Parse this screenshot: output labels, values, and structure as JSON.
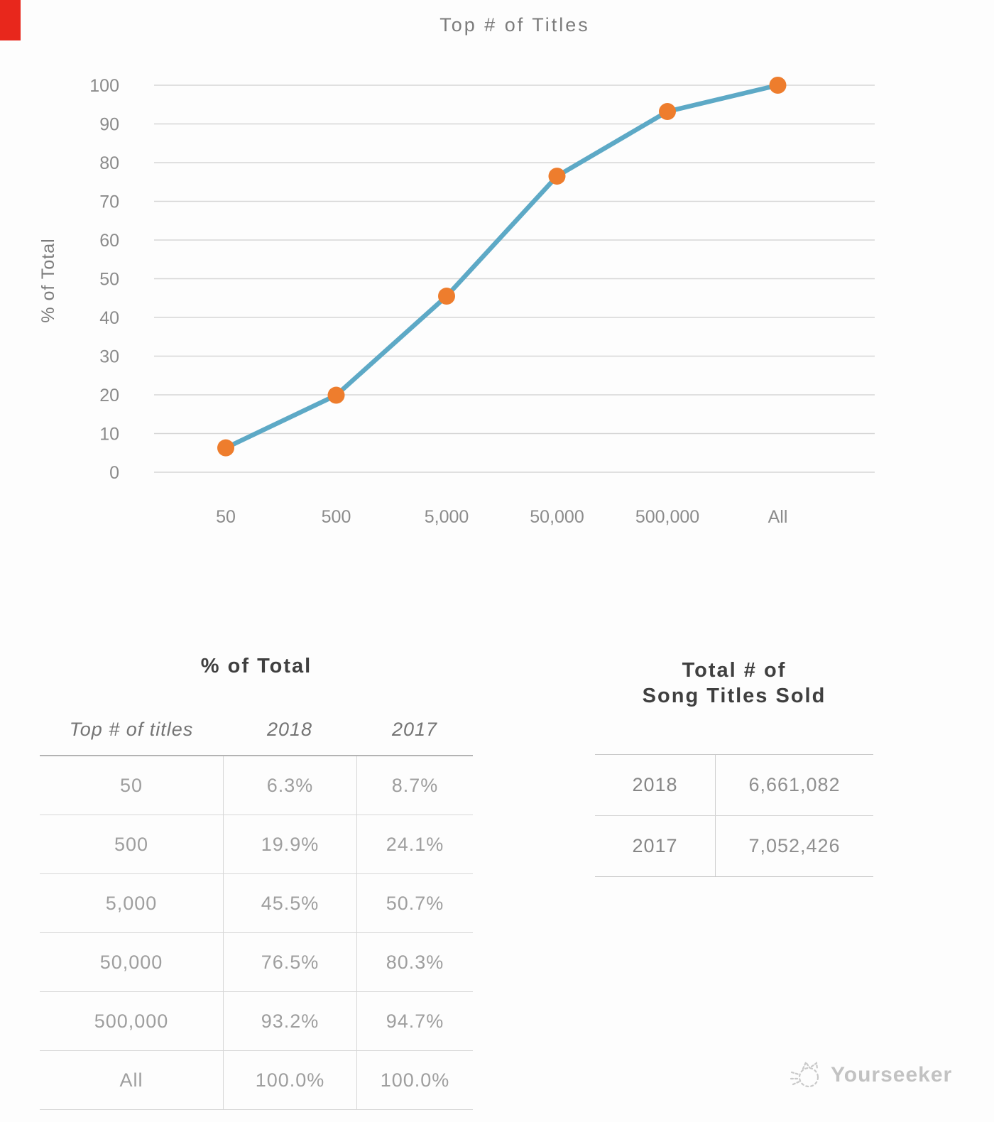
{
  "chart_data": {
    "type": "line",
    "title": "Top # of Titles",
    "ylabel": "% of Total",
    "xlabel": "",
    "categories": [
      "50",
      "500",
      "5,000",
      "50,000",
      "500,000",
      "All"
    ],
    "series": [
      {
        "name": "2018",
        "values": [
          6.3,
          19.9,
          45.5,
          76.5,
          93.2,
          100.0
        ]
      }
    ],
    "ylim": [
      0,
      100
    ],
    "yticks": [
      0,
      10,
      20,
      30,
      40,
      50,
      60,
      70,
      80,
      90,
      100
    ],
    "grid": "horizontal-only",
    "legend": "none",
    "line_color": "#5da9c6",
    "marker_color": "#ee7d2d",
    "grid_color": "#d6d6d6",
    "axis_text_color": "#8b8b8b",
    "title_color": "#7c7c7c"
  },
  "pct_table": {
    "title": "% of Total",
    "columns": [
      "Top # of titles",
      "2018",
      "2017"
    ],
    "rows": [
      {
        "titles": "50",
        "y2018": "6.3%",
        "y2017": "8.7%"
      },
      {
        "titles": "500",
        "y2018": "19.9%",
        "y2017": "24.1%"
      },
      {
        "titles": "5,000",
        "y2018": "45.5%",
        "y2017": "50.7%"
      },
      {
        "titles": "50,000",
        "y2018": "76.5%",
        "y2017": "80.3%"
      },
      {
        "titles": "500,000",
        "y2018": "93.2%",
        "y2017": "94.7%"
      },
      {
        "titles": "All",
        "y2018": "100.0%",
        "y2017": "100.0%"
      }
    ]
  },
  "totals_table": {
    "title_line1": "Total # of",
    "title_line2": "Song Titles Sold",
    "rows": [
      {
        "year": "2018",
        "value": "6,661,082"
      },
      {
        "year": "2017",
        "value": "7,052,426"
      }
    ]
  },
  "watermark": {
    "label": "Yourseeker"
  },
  "corner_mark_color": "#e8271c"
}
